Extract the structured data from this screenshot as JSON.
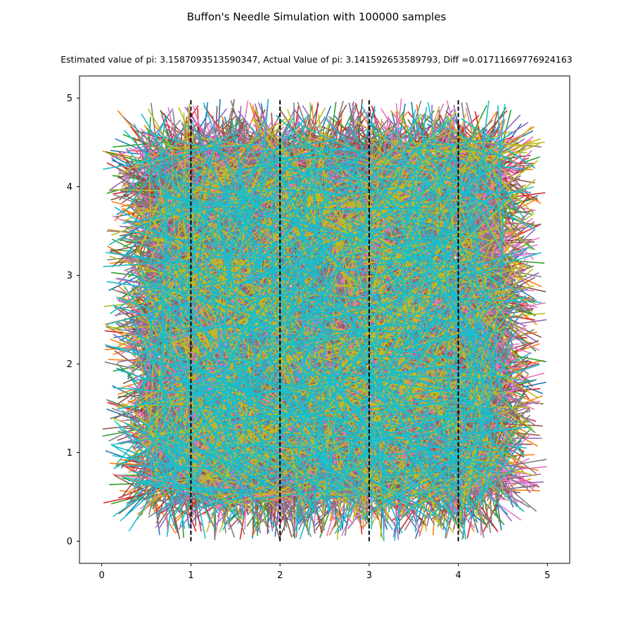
{
  "chart_data": {
    "type": "line",
    "title": "Buffon's Needle Simulation with 100000 samples",
    "subtitle": "Estimated value of pi: 3.1587093513590347, Actual Value of pi: 3.141592653589793, Diff =0.01711669776924163",
    "xlabel": "",
    "ylabel": "",
    "xlim": [
      -0.25,
      5.25
    ],
    "ylim": [
      -0.25,
      5.25
    ],
    "xticks": [
      "0",
      "1",
      "2",
      "3",
      "4",
      "5"
    ],
    "yticks": [
      "0",
      "1",
      "2",
      "3",
      "4",
      "5"
    ],
    "grid": false,
    "needle_length": 1.0,
    "samples": 100000,
    "needle_center_range": [
      0.5,
      4.5
    ],
    "reference_lines": [
      {
        "x": 1,
        "y_range": [
          0,
          5
        ],
        "style": "dashed",
        "color": "#000000"
      },
      {
        "x": 2,
        "y_range": [
          0,
          5
        ],
        "style": "dashed",
        "color": "#000000"
      },
      {
        "x": 3,
        "y_range": [
          0,
          5
        ],
        "style": "dashed",
        "color": "#000000"
      },
      {
        "x": 4,
        "y_range": [
          0,
          5
        ],
        "style": "dashed",
        "color": "#000000"
      }
    ],
    "color_cycle": [
      "#1f77b4",
      "#ff7f0e",
      "#2ca02c",
      "#d62728",
      "#9467bd",
      "#8c564b",
      "#e377c2",
      "#7f7f7f",
      "#bcbd22",
      "#17becf"
    ]
  }
}
